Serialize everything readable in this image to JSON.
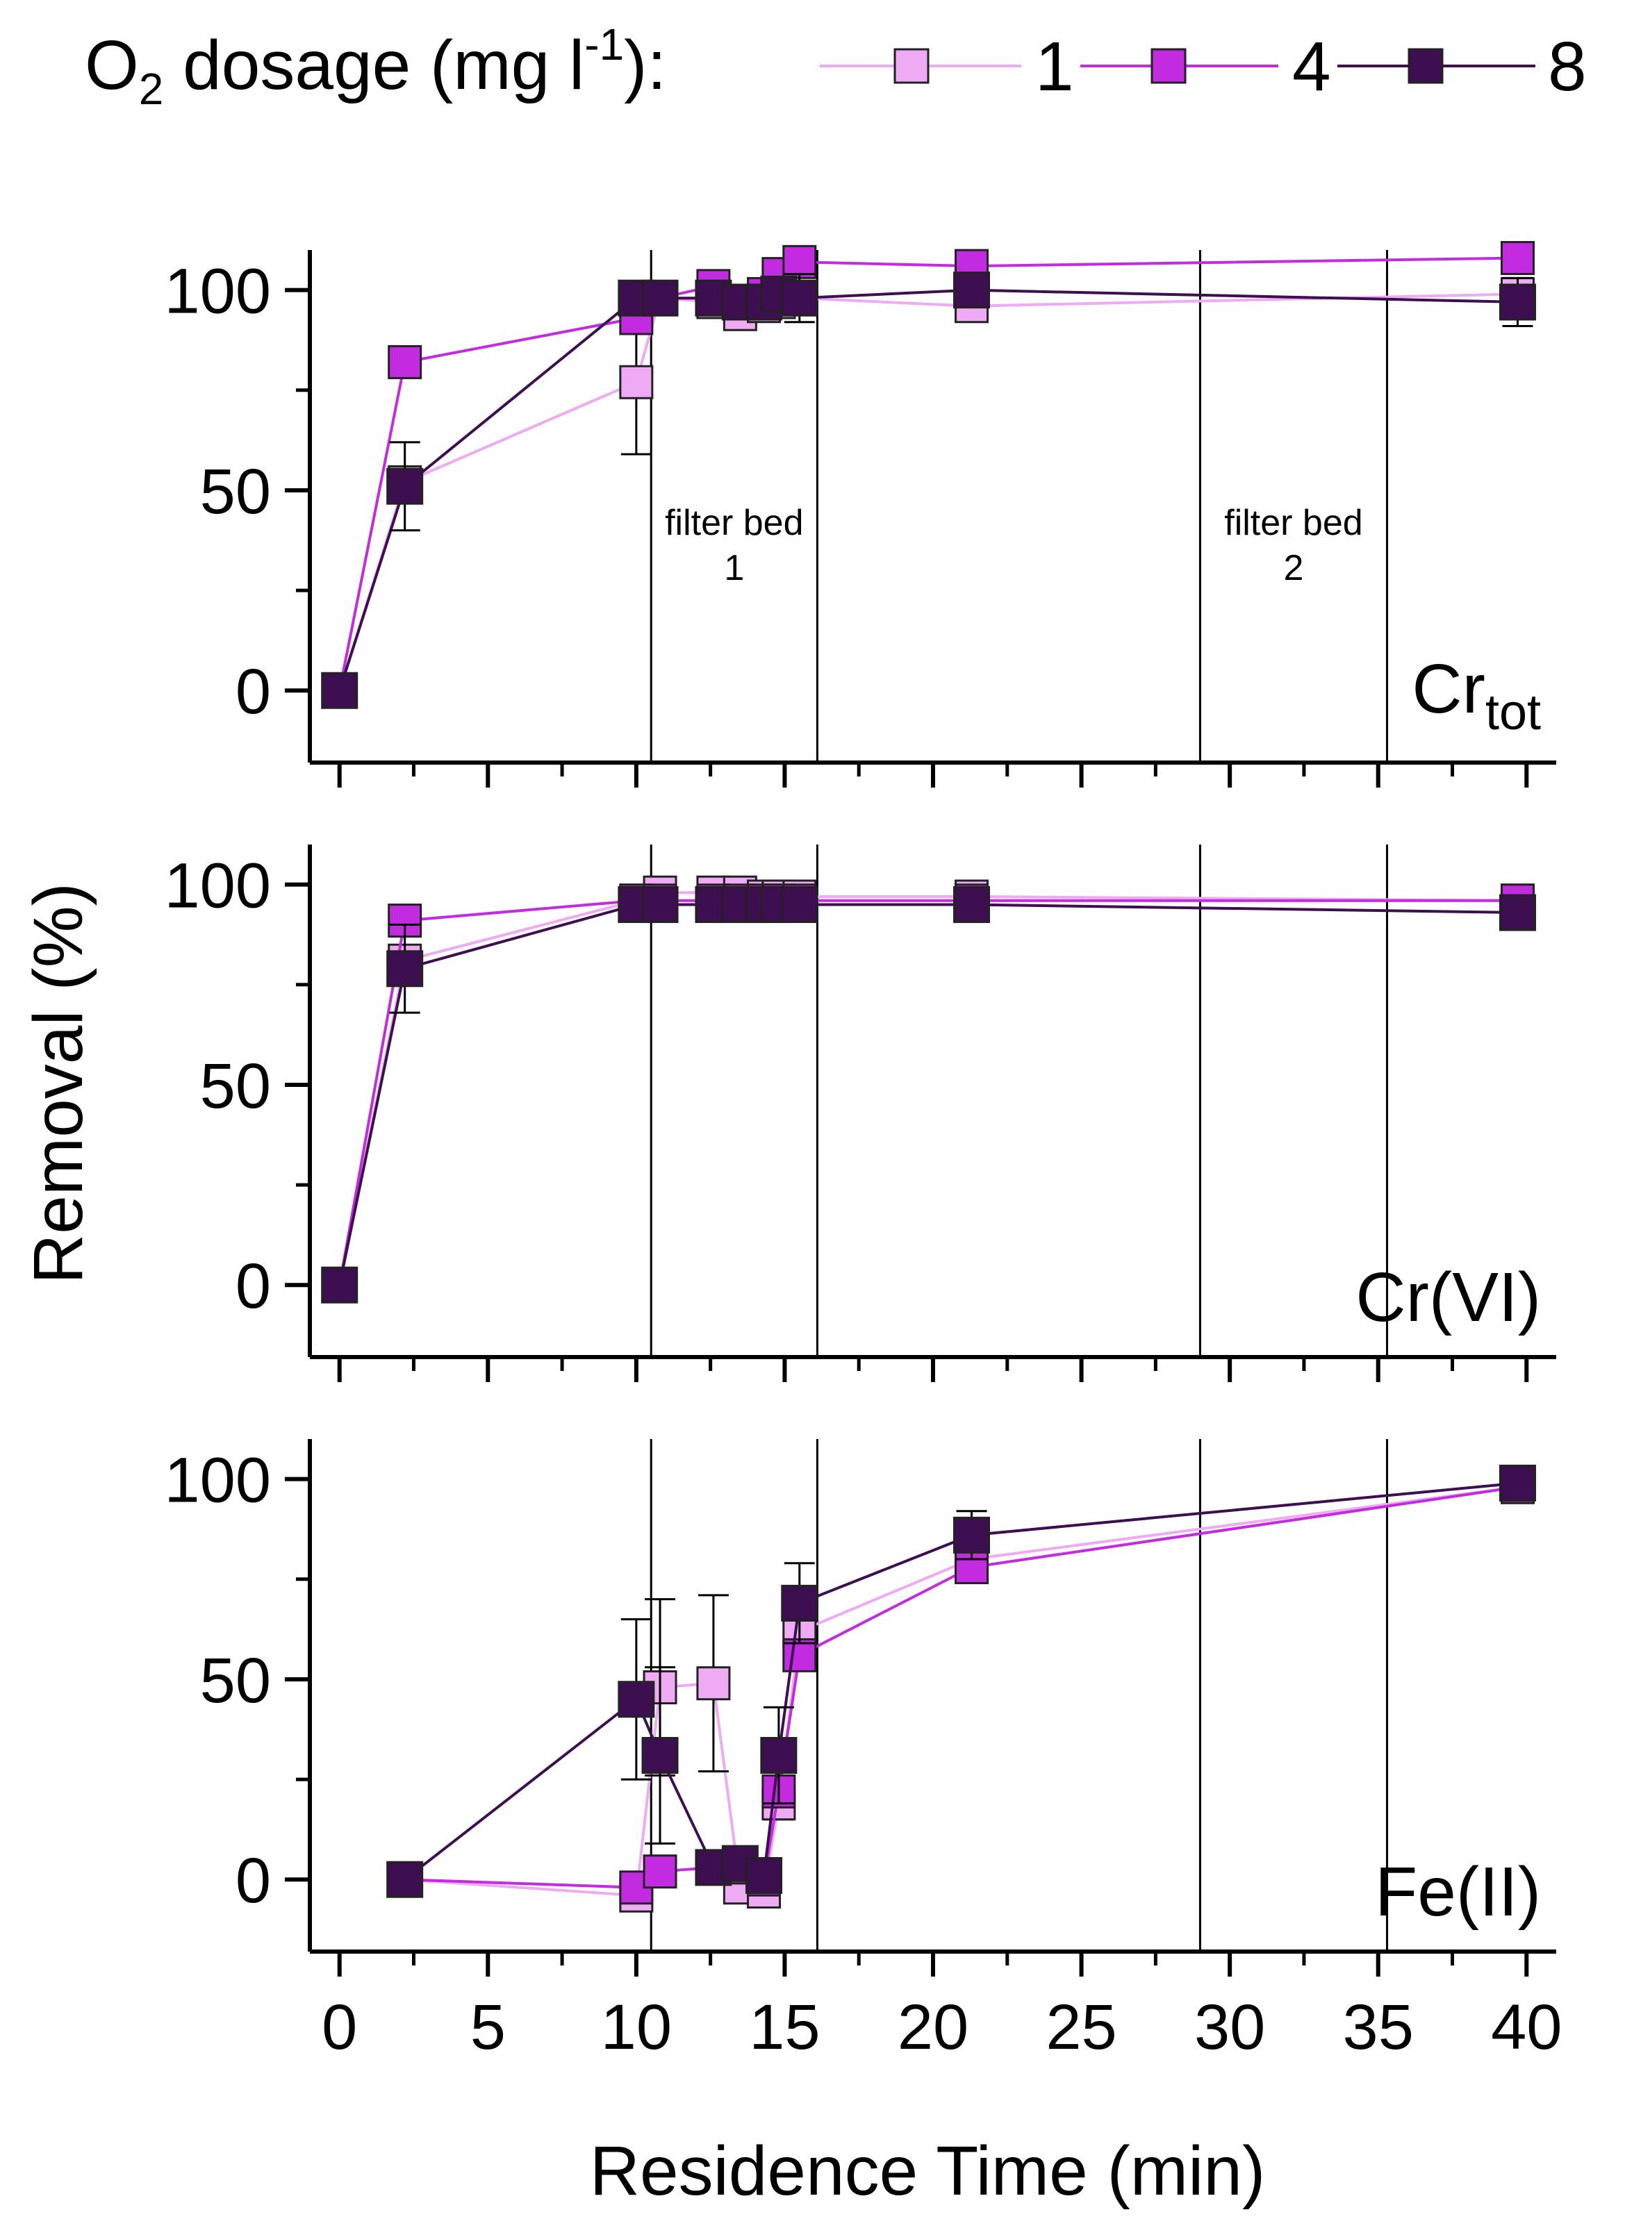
{
  "legend": {
    "prefix": "O",
    "sub": "2",
    "mid": " dosage (mg l",
    "sup": "-1",
    "suffix": "):"
  },
  "colors": {
    "1": "#eeaaf2",
    "4": "#c22be0",
    "8": "#3e0f50",
    "axis": "#000000"
  },
  "filter_beds": [
    {
      "line1": "filter bed",
      "line2": "1",
      "x_start": 10.5,
      "x_end": 16.1
    },
    {
      "line1": "filter bed",
      "line2": "2",
      "x_start": 29.0,
      "x_end": 35.3
    }
  ],
  "chart_data": {
    "type": "line",
    "xlabel": "Residence Time (min)",
    "ylabel": "Removal (%)",
    "xlim": [
      -1,
      41
    ],
    "xticks": [
      0,
      5,
      10,
      15,
      20,
      25,
      30,
      35,
      40
    ],
    "yticks": [
      0,
      50,
      100
    ],
    "series_names": [
      "1",
      "4",
      "8"
    ],
    "panels": [
      {
        "label": "Cr",
        "label_sub": "tot",
        "ylim": [
          -18,
          110
        ],
        "series": [
          {
            "name": "1",
            "x": [
              0,
              2.2,
              10,
              10.8,
              12.6,
              13.5,
              14.3,
              14.8,
              15.5,
              21.3,
              39.7
            ],
            "y": [
              0,
              52,
              77,
              98,
              97,
              94,
              96,
              97,
              98,
              96,
              99
            ],
            "err": [
              0,
              0,
              18,
              2,
              3,
              3,
              3,
              3,
              3,
              3,
              3
            ]
          },
          {
            "name": "4",
            "x": [
              0,
              2.2,
              10,
              10.8,
              12.6,
              13.5,
              14.3,
              14.8,
              15.5,
              21.3,
              39.7
            ],
            "y": [
              0,
              82,
              93,
              98,
              101,
              97,
              99,
              104,
              107,
              106,
              108
            ],
            "err": [
              0,
              2,
              3,
              2,
              2,
              2,
              2,
              2,
              2,
              2,
              2
            ]
          },
          {
            "name": "8",
            "x": [
              0,
              2.2,
              10,
              10.8,
              12.6,
              13.5,
              14.3,
              14.8,
              15.5,
              21.3,
              39.7
            ],
            "y": [
              0,
              51,
              98,
              98,
              98,
              97,
              97,
              99,
              98,
              100,
              97
            ],
            "err": [
              0,
              11,
              3,
              2,
              3,
              3,
              4,
              4,
              6,
              4,
              6
            ]
          }
        ]
      },
      {
        "label": "Cr(VI)",
        "label_sub": "",
        "ylim": [
          -18,
          110
        ],
        "series": [
          {
            "name": "1",
            "x": [
              0,
              2.2,
              10,
              10.8,
              12.6,
              13.5,
              14.3,
              14.8,
              15.5,
              21.3,
              39.7
            ],
            "y": [
              0,
              81,
              96,
              98,
              98,
              98,
              97,
              97,
              97,
              97,
              96
            ],
            "err": [
              0,
              3,
              2,
              2,
              2,
              2,
              2,
              2,
              2,
              2,
              2
            ]
          },
          {
            "name": "4",
            "x": [
              0,
              2.2,
              10,
              10.8,
              12.6,
              13.5,
              14.3,
              14.8,
              15.5,
              21.3,
              39.7
            ],
            "y": [
              0,
              91,
              96,
              96,
              96,
              96,
              96,
              96,
              96,
              96,
              96
            ],
            "err": [
              0,
              2,
              2,
              2,
              2,
              2,
              2,
              2,
              2,
              2,
              2
            ]
          },
          {
            "name": "8",
            "x": [
              0,
              2.2,
              10,
              10.8,
              12.6,
              13.5,
              14.3,
              14.8,
              15.5,
              21.3,
              39.7
            ],
            "y": [
              0,
              79,
              95,
              95,
              95,
              95,
              95,
              95,
              95,
              95,
              93
            ],
            "err": [
              0,
              11,
              2,
              2,
              2,
              2,
              2,
              2,
              2,
              2,
              3
            ]
          }
        ]
      },
      {
        "label": "Fe(II)",
        "label_sub": "",
        "ylim": [
          -18,
          110
        ],
        "series": [
          {
            "name": "1",
            "x": [
              2.2,
              10,
              10.8,
              12.6,
              13.5,
              14.3,
              14.8,
              15.5,
              21.3,
              39.7
            ],
            "y": [
              0,
              -4,
              48,
              49,
              -2,
              -3,
              19,
              62,
              80,
              98
            ],
            "err": [
              0,
              2,
              22,
              22,
              2,
              2,
              4,
              5,
              3,
              2
            ]
          },
          {
            "name": "4",
            "x": [
              2.2,
              10,
              10.8,
              12.6,
              13.5,
              14.3,
              14.8,
              15.5,
              21.3,
              39.7
            ],
            "y": [
              0,
              -2,
              2,
              3,
              3,
              0,
              22,
              56,
              78,
              98
            ],
            "err": [
              0,
              2,
              2,
              2,
              2,
              2,
              3,
              3,
              2,
              2
            ]
          },
          {
            "name": "8",
            "x": [
              2.2,
              10,
              10.8,
              12.6,
              13.5,
              14.3,
              14.8,
              15.5,
              21.3,
              39.7
            ],
            "y": [
              0,
              45,
              31,
              3,
              4,
              1,
              31,
              69,
              86,
              99
            ],
            "err": [
              0,
              20,
              22,
              2,
              2,
              2,
              12,
              10,
              6,
              2
            ]
          }
        ]
      }
    ]
  }
}
